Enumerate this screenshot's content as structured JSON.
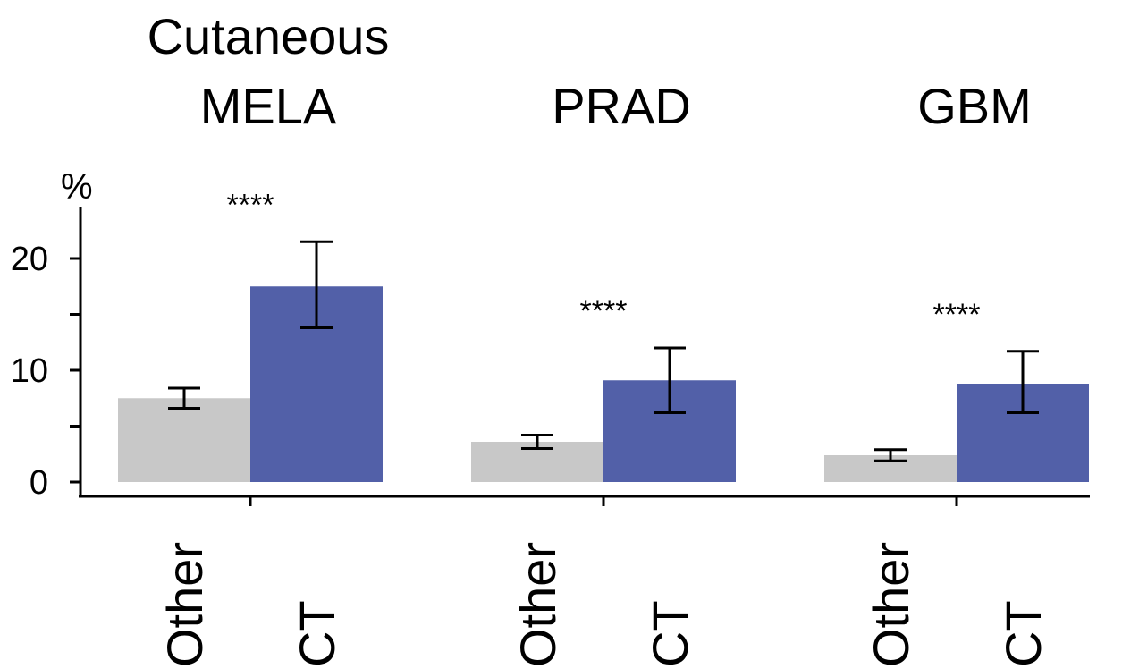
{
  "chart_data": {
    "type": "bar",
    "ylabel": "%",
    "ylim": [
      0,
      24
    ],
    "yticks": [
      0,
      10,
      20
    ],
    "grid": false,
    "colors": {
      "Other": "#c8c8c8",
      "CT": "#5260a8"
    },
    "groups": [
      {
        "title_lines": [
          "Cutaneous",
          "MELA"
        ],
        "significance": "****",
        "bars": [
          {
            "category": "Other",
            "value": 7.5,
            "err_low": 6.6,
            "err_high": 8.4
          },
          {
            "category": "CT",
            "value": 17.5,
            "err_low": 13.8,
            "err_high": 21.5
          }
        ]
      },
      {
        "title_lines": [
          "PRAD"
        ],
        "significance": "****",
        "bars": [
          {
            "category": "Other",
            "value": 3.6,
            "err_low": 3.0,
            "err_high": 4.2
          },
          {
            "category": "CT",
            "value": 9.1,
            "err_low": 6.2,
            "err_high": 12.0
          }
        ]
      },
      {
        "title_lines": [
          "GBM"
        ],
        "significance": "****",
        "bars": [
          {
            "category": "Other",
            "value": 2.4,
            "err_low": 1.9,
            "err_high": 2.9
          },
          {
            "category": "CT",
            "value": 8.8,
            "err_low": 6.2,
            "err_high": 11.7
          }
        ]
      }
    ]
  }
}
